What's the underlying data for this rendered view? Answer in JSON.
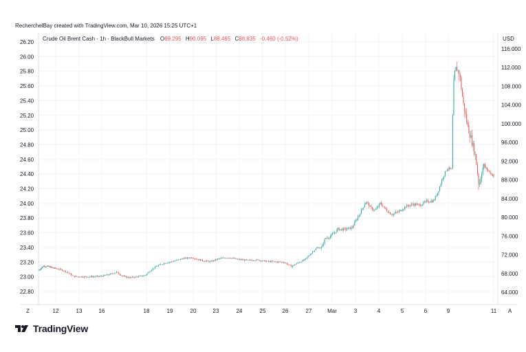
{
  "credit": "RecherchelBay created with TradingView.com, Mar 10, 2026 15:25 UTC+1",
  "legend": {
    "symbol": "Crude Oil Brent Cash · 1h · BlackBull Markets",
    "open_label": "O",
    "open": "89.295",
    "high_label": "H",
    "high": "90.095",
    "low_label": "L",
    "low": "88.465",
    "close_label": "C",
    "close": "88.835",
    "change": "-0.460 (-0.52%)"
  },
  "currency": "USD",
  "corner_left": "Z",
  "corner_right": "A",
  "brand": {
    "name": "TradingView",
    "logo_icon": "tradingview-logo-icon"
  },
  "colors": {
    "up": "#26a69a",
    "down": "#ef5350",
    "grid": "#f0f3fa",
    "axis_text": "#131722",
    "border": "#e0e3eb"
  },
  "chart_data": {
    "type": "candlestick",
    "left_axis": {
      "ticks": [
        "26.20",
        "26.00",
        "25.80",
        "25.60",
        "25.40",
        "25.20",
        "25.00",
        "24.80",
        "24.60",
        "24.40",
        "24.20",
        "24.00",
        "23.80",
        "23.60",
        "23.40",
        "23.20",
        "23.00",
        "22.80"
      ],
      "range": [
        22.7,
        26.25
      ]
    },
    "right_axis": {
      "label": "USD",
      "ticks": [
        "116.000",
        "112.000",
        "108.000",
        "104.000",
        "100.000",
        "96.000",
        "92.000",
        "88.000",
        "84.000",
        "80.000",
        "76.000",
        "72.000",
        "68.000",
        "64.000"
      ],
      "range": [
        62.6,
        117.0
      ]
    },
    "x_ticks": [
      {
        "label": "12",
        "t": 1
      },
      {
        "label": "13",
        "t": 2
      },
      {
        "label": "16",
        "t": 3
      },
      {
        "label": "18",
        "t": 5
      },
      {
        "label": "19",
        "t": 6
      },
      {
        "label": "20",
        "t": 7
      },
      {
        "label": "23",
        "t": 8
      },
      {
        "label": "24",
        "t": 9
      },
      {
        "label": "25",
        "t": 10
      },
      {
        "label": "26",
        "t": 11
      },
      {
        "label": "27",
        "t": 12
      },
      {
        "label": "Mar",
        "t": 13
      },
      {
        "label": "3",
        "t": 14
      },
      {
        "label": "4",
        "t": 15
      },
      {
        "label": "5",
        "t": 16
      },
      {
        "label": "6",
        "t": 17
      },
      {
        "label": "9",
        "t": 18
      },
      {
        "label": "11",
        "t": 20
      }
    ],
    "trend": [
      [
        0.0,
        68.6
      ],
      [
        0.3,
        69.6
      ],
      [
        0.6,
        69.5
      ],
      [
        0.9,
        69.2
      ],
      [
        1.2,
        68.9
      ],
      [
        1.5,
        68.4
      ],
      [
        1.8,
        67.4
      ],
      [
        2.2,
        67.3
      ],
      [
        2.6,
        67.3
      ],
      [
        3.0,
        67.4
      ],
      [
        3.4,
        67.8
      ],
      [
        3.7,
        68.3
      ],
      [
        4.0,
        67.4
      ],
      [
        4.3,
        67.1
      ],
      [
        4.6,
        67.3
      ],
      [
        5.0,
        67.6
      ],
      [
        5.2,
        68.6
      ],
      [
        5.5,
        69.6
      ],
      [
        5.8,
        70.2
      ],
      [
        6.2,
        70.6
      ],
      [
        6.6,
        71.2
      ],
      [
        7.0,
        71.4
      ],
      [
        7.4,
        70.8
      ],
      [
        7.8,
        70.5
      ],
      [
        8.2,
        71.2
      ],
      [
        8.6,
        71.4
      ],
      [
        9.0,
        71.0
      ],
      [
        9.4,
        70.8
      ],
      [
        9.8,
        70.9
      ],
      [
        10.2,
        70.6
      ],
      [
        10.6,
        70.5
      ],
      [
        11.0,
        70.4
      ],
      [
        11.3,
        69.5
      ],
      [
        11.6,
        70.3
      ],
      [
        11.9,
        71.0
      ],
      [
        12.2,
        72.6
      ],
      [
        12.4,
        73.5
      ],
      [
        12.6,
        73.5
      ],
      [
        12.75,
        75.5
      ],
      [
        13.0,
        76.0
      ],
      [
        13.3,
        77.5
      ],
      [
        13.6,
        77.4
      ],
      [
        13.9,
        77.8
      ],
      [
        14.2,
        80.5
      ],
      [
        14.5,
        83.4
      ],
      [
        14.7,
        82.0
      ],
      [
        14.9,
        81.5
      ],
      [
        15.1,
        83.0
      ],
      [
        15.4,
        81.4
      ],
      [
        15.6,
        80.6
      ],
      [
        15.9,
        81.2
      ],
      [
        16.2,
        82.3
      ],
      [
        16.5,
        82.8
      ],
      [
        16.8,
        82.6
      ],
      [
        17.1,
        83.4
      ],
      [
        17.4,
        83.5
      ],
      [
        17.6,
        85.5
      ],
      [
        17.8,
        88.5
      ],
      [
        18.0,
        90.5
      ],
      [
        18.2,
        90.2
      ],
      [
        18.25,
        104.5
      ],
      [
        18.3,
        110.0
      ],
      [
        18.4,
        112.0
      ],
      [
        18.55,
        110.5
      ],
      [
        18.7,
        104.5
      ],
      [
        18.9,
        99.5
      ],
      [
        19.1,
        96.0
      ],
      [
        19.25,
        93.0
      ],
      [
        19.4,
        86.5
      ],
      [
        19.5,
        89.5
      ],
      [
        19.6,
        91.0
      ],
      [
        19.8,
        90.0
      ],
      [
        20.0,
        89.0
      ],
      [
        20.1,
        88.8
      ]
    ]
  }
}
